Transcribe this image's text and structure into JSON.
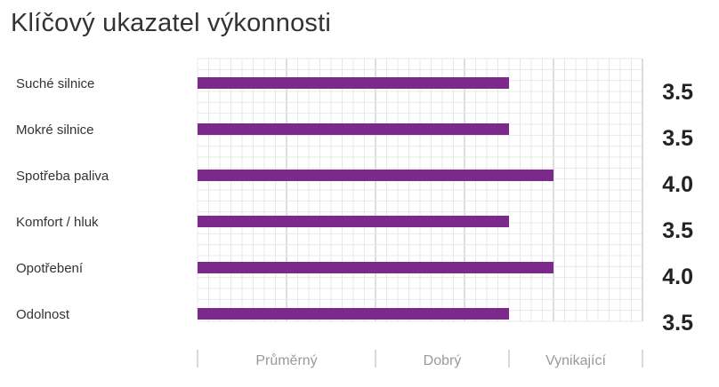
{
  "title": "Klíčový ukazatel výkonnosti",
  "chart_data": {
    "type": "bar",
    "orientation": "horizontal",
    "title": "Klíčový ukazatel výkonnosti",
    "categories": [
      "Suché silnice",
      "Mokré silnice",
      "Spotřeba paliva",
      "Komfort / hluk",
      "Opotřebení",
      "Odolnost"
    ],
    "values": [
      3.5,
      3.5,
      4.0,
      3.5,
      4.0,
      3.5
    ],
    "value_labels": [
      "3.5",
      "3.5",
      "4.0",
      "3.5",
      "4.0",
      "3.5"
    ],
    "xlim": [
      0,
      5
    ],
    "zones": [
      "Průměrný",
      "Dobrý",
      "Vynikající"
    ],
    "zone_bounds": [
      0,
      2,
      3.5,
      5
    ],
    "grid": true,
    "bar_color": "#7b2a8b",
    "grid_color": "#e8e8e8",
    "major_grid_color": "#d4d4d4"
  }
}
